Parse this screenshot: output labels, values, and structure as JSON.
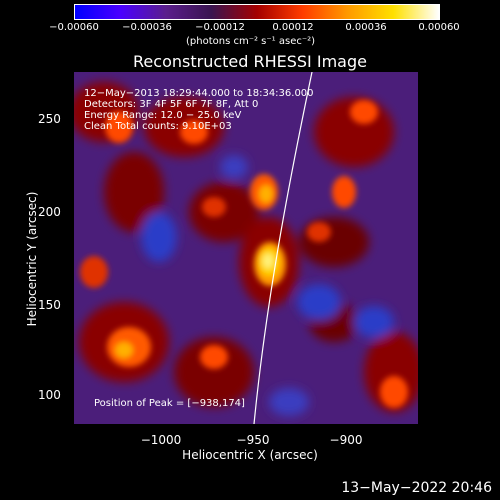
{
  "colorbar": {
    "ticks": [
      "−0.00060",
      "−0.00036",
      "−0.00012",
      "0.00012",
      "0.00036",
      "0.00060"
    ],
    "units": "(photons cm⁻² s⁻¹ asec⁻²)",
    "colors": [
      "#0000ff",
      "#4a00ff",
      "#5a1e8c",
      "#3a1450",
      "#a40000",
      "#ff3c00",
      "#ff9a00",
      "#ffe000",
      "#ffffff"
    ]
  },
  "title": "Reconstructed RHESSI Image",
  "annotations": {
    "time": "12−May−2013 18:29:44.000 to 18:34:36.000",
    "detectors": "Detectors: 3F 4F 5F 6F 7F 8F, Att 0",
    "energy": "Energy Range: 12.0 − 25.0 keV",
    "clean": "Clean    Total counts: 9.10E+03",
    "peak": "Position of Peak = [−938,174]"
  },
  "axes": {
    "xlabel": "Heliocentric X (arcsec)",
    "ylabel": "Heliocentric Y (arcsec)",
    "xticks": [
      "−1000",
      "−950",
      "−900"
    ],
    "yticks": [
      "250",
      "200",
      "150",
      "100"
    ]
  },
  "footer": "13−May−2022 20:46"
}
